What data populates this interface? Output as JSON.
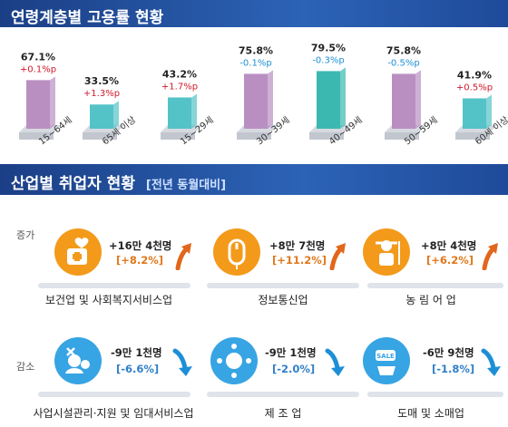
{
  "sections": {
    "employment_title": "연령계층별 고용률 현황",
    "industry_title": "산업별 취업자 현황",
    "industry_subtitle": "[전년 동월대비]"
  },
  "colors": {
    "band": "#1f4a9a",
    "bar_purple": "#b98fc2",
    "bar_teal": "#54c3c8",
    "up": "#d0192b",
    "down": "#1c8fd6",
    "orange": "#f39a1b",
    "blue": "#37a4e4"
  },
  "chart_data": {
    "type": "bar",
    "categories": [
      "15~64세",
      "65세 이상",
      "15~29세",
      "30~39세",
      "40~49세",
      "50~59세",
      "60세 이상"
    ],
    "values": [
      67.1,
      33.5,
      43.2,
      75.8,
      79.5,
      75.8,
      41.9
    ],
    "value_labels": [
      "67.1%",
      "33.5%",
      "43.2%",
      "75.8%",
      "79.5%",
      "75.8%",
      "41.9%"
    ],
    "changes": [
      "+0.1%p",
      "+1.3%p",
      "+1.7%p",
      "-0.1%p",
      "-0.3%p",
      "-0.5%p",
      "+0.5%p"
    ],
    "bar_colors": [
      "#b98fc2",
      "#54c3c8",
      "#54c3c8",
      "#b98fc2",
      "#3bb8b0",
      "#b98fc2",
      "#54c3c8"
    ],
    "ylim": [
      0,
      85
    ]
  },
  "industry": {
    "increase_label": "증가",
    "decrease_label": "감소",
    "increase": [
      {
        "name": "보건업 및 사회복지서비스업",
        "value": "+16만 4천명",
        "pct": "[+8.2%]",
        "icon": "healthcare-icon"
      },
      {
        "name": "정보통신업",
        "value": "+8만 7천명",
        "pct": "[+11.2%]",
        "icon": "computer-mouse-icon"
      },
      {
        "name": "농 림 어 업",
        "value": "+8만 4천명",
        "pct": "[+6.2%]",
        "icon": "farmer-icon"
      }
    ],
    "decrease": [
      {
        "name": "사업시설관리·지원 및 임대서비스업",
        "value": "-9만 1천명",
        "pct": "[-6.6%]",
        "icon": "facility-service-icon"
      },
      {
        "name": "제 조 업",
        "value": "-9만 1천명",
        "pct": "[-2.0%]",
        "icon": "manufacturing-icon"
      },
      {
        "name": "도매 및 소매업",
        "value": "-6만 9천명",
        "pct": "[-1.8%]",
        "icon": "retail-sale-icon"
      }
    ]
  }
}
